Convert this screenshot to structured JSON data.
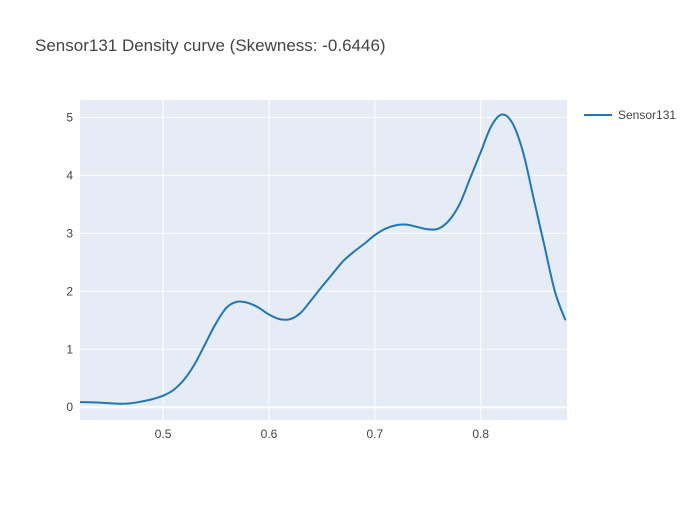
{
  "chart_data": {
    "type": "line",
    "title": "Sensor131 Density curve (Skewness: -0.6446)",
    "xlabel": "",
    "ylabel": "",
    "xlim": [
      0.4215,
      0.8815
    ],
    "ylim": [
      -0.22,
      5.3
    ],
    "x_ticks": [
      0.5,
      0.6,
      0.7,
      0.8
    ],
    "x_tick_labels": [
      "0.5",
      "0.6",
      "0.7",
      "0.8"
    ],
    "y_ticks": [
      0,
      1,
      2,
      3,
      4,
      5
    ],
    "y_tick_labels": [
      "0",
      "1",
      "2",
      "3",
      "4",
      "5"
    ],
    "grid": true,
    "legend_position": "top-right",
    "series": [
      {
        "name": "Sensor131",
        "color": "#1f77b4",
        "x": [
          0.42,
          0.44,
          0.46,
          0.47,
          0.48,
          0.49,
          0.5,
          0.51,
          0.52,
          0.53,
          0.54,
          0.55,
          0.56,
          0.57,
          0.58,
          0.59,
          0.6,
          0.61,
          0.62,
          0.63,
          0.64,
          0.65,
          0.66,
          0.67,
          0.68,
          0.69,
          0.7,
          0.71,
          0.72,
          0.73,
          0.74,
          0.75,
          0.76,
          0.77,
          0.78,
          0.79,
          0.8,
          0.81,
          0.82,
          0.83,
          0.84,
          0.85,
          0.86,
          0.87,
          0.88
        ],
        "y": [
          0.09,
          0.08,
          0.06,
          0.07,
          0.1,
          0.14,
          0.2,
          0.3,
          0.48,
          0.75,
          1.1,
          1.45,
          1.72,
          1.82,
          1.8,
          1.72,
          1.6,
          1.52,
          1.52,
          1.63,
          1.85,
          2.08,
          2.3,
          2.52,
          2.68,
          2.82,
          2.97,
          3.08,
          3.14,
          3.15,
          3.11,
          3.07,
          3.08,
          3.22,
          3.5,
          3.95,
          4.4,
          4.85,
          5.05,
          4.9,
          4.4,
          3.6,
          2.8,
          2.0,
          1.5
        ]
      }
    ]
  }
}
